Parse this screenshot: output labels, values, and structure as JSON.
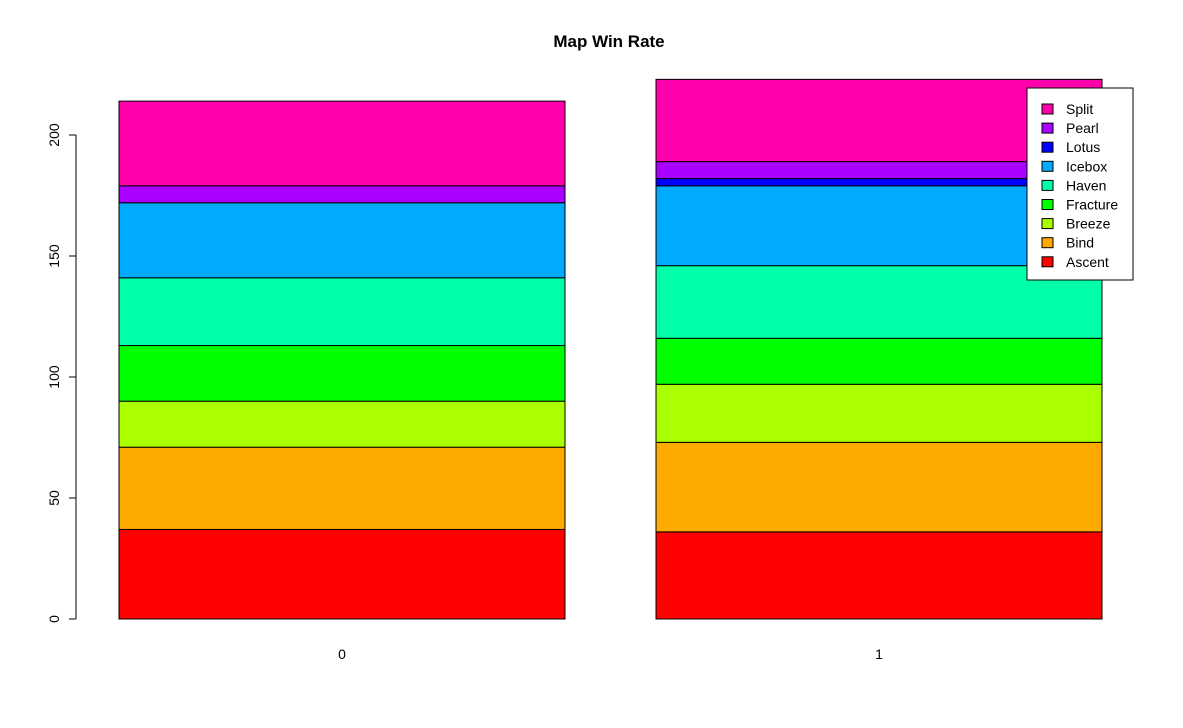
{
  "chart_data": {
    "type": "bar",
    "stacked": true,
    "title": "Map Win Rate",
    "xlabel": "",
    "ylabel": "",
    "categories": [
      "0",
      "1"
    ],
    "ylim": [
      0,
      225
    ],
    "yticks": [
      "0",
      "50",
      "100",
      "150",
      "200"
    ],
    "grid": false,
    "legend_position": "top-right",
    "series": [
      {
        "name": "Ascent",
        "color": "#FF0000",
        "values": [
          37,
          36
        ]
      },
      {
        "name": "Bind",
        "color": "#FFAA00",
        "values": [
          34,
          37
        ]
      },
      {
        "name": "Breeze",
        "color": "#AAFF00",
        "values": [
          19,
          24
        ]
      },
      {
        "name": "Fracture",
        "color": "#00FF00",
        "values": [
          23,
          19
        ]
      },
      {
        "name": "Haven",
        "color": "#00FFAA",
        "values": [
          28,
          30
        ]
      },
      {
        "name": "Icebox",
        "color": "#00AAFF",
        "values": [
          31,
          33
        ]
      },
      {
        "name": "Lotus",
        "color": "#0000FF",
        "values": [
          0,
          3
        ]
      },
      {
        "name": "Pearl",
        "color": "#AA00FF",
        "values": [
          7,
          7
        ]
      },
      {
        "name": "Split",
        "color": "#FF00AA",
        "values": [
          35,
          34
        ]
      }
    ]
  }
}
